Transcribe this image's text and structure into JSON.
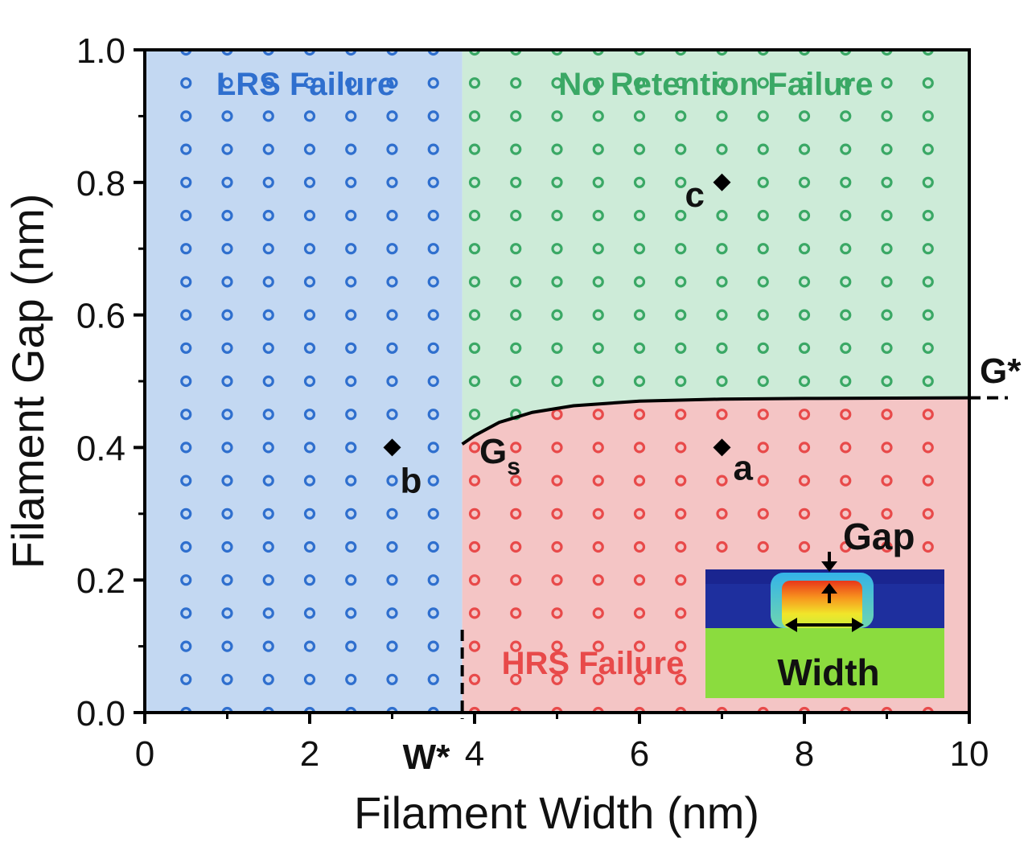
{
  "chart_data": {
    "type": "scatter",
    "title": "",
    "xlabel": "Filament Width (nm)",
    "ylabel": "Filament Gap (nm)",
    "xlim": [
      0,
      10
    ],
    "ylim": [
      0,
      1.0
    ],
    "xticks": [
      "0",
      "2",
      "4",
      "6",
      "8",
      "10"
    ],
    "yticks": [
      "0.0",
      "0.2",
      "0.4",
      "0.6",
      "0.8",
      "1.0"
    ],
    "grid": false,
    "colors": {
      "lrs_fill": "#c3d8f2",
      "lrs_marker": "#2f6fce",
      "noret_fill": "#cdebd8",
      "noret_marker": "#3aa865",
      "hrs_fill": "#f4c5c5",
      "hrs_marker": "#e84a4a"
    },
    "regions": [
      {
        "key": "lrs",
        "label": "LRS Failure"
      },
      {
        "key": "noret",
        "label": "No Retention Failure"
      },
      {
        "key": "hrs",
        "label": "HRS Failure"
      }
    ],
    "width_threshold": {
      "label": "W*",
      "x": 3.85
    },
    "gap_threshold": {
      "label": "G*",
      "y": 0.475
    },
    "boundary": {
      "label": "G",
      "subscript": "s",
      "points": [
        [
          3.85,
          0.405
        ],
        [
          4.0,
          0.418
        ],
        [
          4.3,
          0.438
        ],
        [
          4.7,
          0.453
        ],
        [
          5.2,
          0.463
        ],
        [
          6.0,
          0.47
        ],
        [
          7.0,
          0.473
        ],
        [
          8.0,
          0.474
        ],
        [
          10.0,
          0.475
        ]
      ]
    },
    "grid_points": {
      "x_start": 0.5,
      "x_end": 9.5,
      "x_step": 0.5,
      "y_start": 0.0,
      "y_end": 1.0,
      "y_step": 0.05
    },
    "highlighted_points": [
      {
        "label": "a",
        "x": 7.0,
        "y": 0.4
      },
      {
        "label": "b",
        "x": 3.0,
        "y": 0.4
      },
      {
        "label": "c",
        "x": 7.0,
        "y": 0.8
      }
    ],
    "inset": {
      "gap_label": "Gap",
      "width_label": "Width"
    }
  }
}
